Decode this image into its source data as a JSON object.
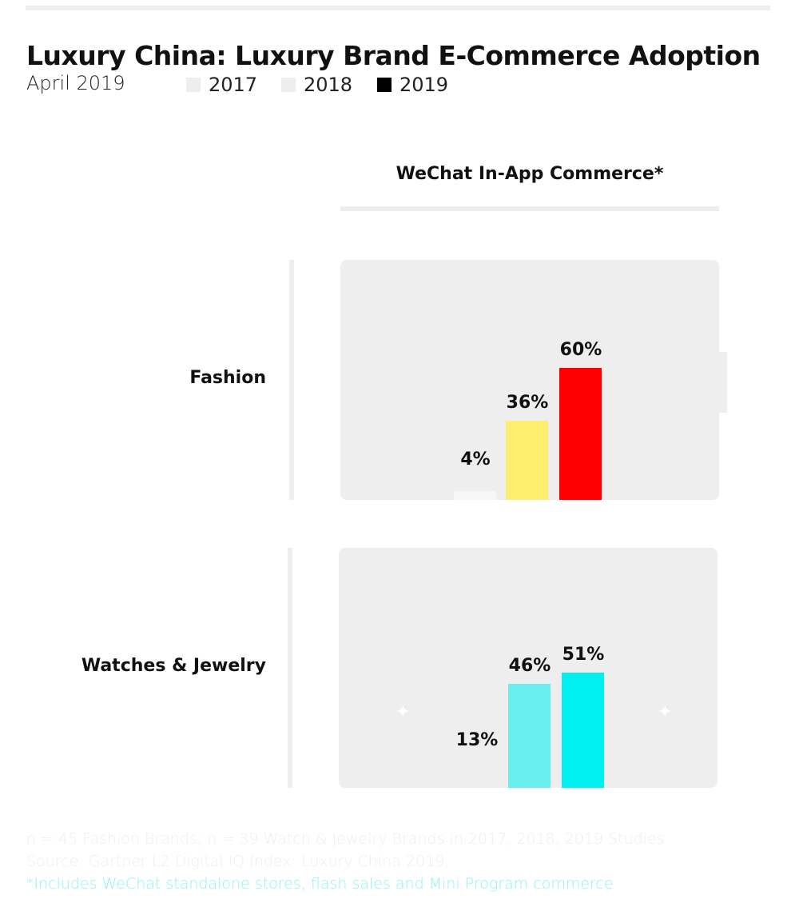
{
  "chart_data": {
    "type": "bar",
    "title": "Luxury China: Luxury Brand E-Commerce Adoption",
    "subtitle": "April 2019",
    "column_header": "WeChat In-App Commerce*",
    "legend": [
      {
        "label": "2017",
        "color": "#eeeeee"
      },
      {
        "label": "2018",
        "color": "#eeeeee"
      },
      {
        "label": "2019",
        "color": "#000000"
      }
    ],
    "categories": [
      "Fashion",
      "Watches & Jewelry"
    ],
    "series": [
      {
        "name": "2017",
        "values": [
          4,
          13
        ],
        "labels": [
          "4%",
          "13%"
        ],
        "colors": [
          "#f6f6f6",
          "#eeeeee"
        ]
      },
      {
        "name": "2018",
        "values": [
          36,
          46
        ],
        "labels": [
          "36%",
          "46%"
        ],
        "colors": [
          "#fdee6f",
          "#6aeeee"
        ]
      },
      {
        "name": "2019",
        "values": [
          60,
          51
        ],
        "labels": [
          "60%",
          "51%"
        ],
        "colors": [
          "#ff0000",
          "#00f0f0"
        ]
      }
    ],
    "ylim": [
      0,
      100
    ]
  },
  "footnotes": [
    "n = 45 Fashion Brands; n = 39 Watch & Jewelry Brands in 2017, 2018, 2019 Studies",
    "Source: Gartner L2 Digital IQ Index: Luxury China 2019.",
    "*Includes WeChat standalone stores, flash sales and Mini Program commerce"
  ]
}
